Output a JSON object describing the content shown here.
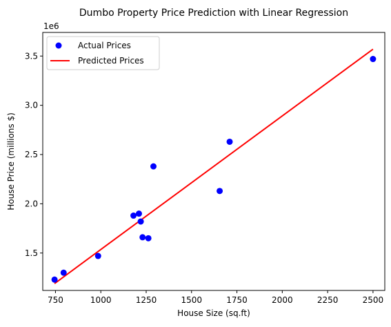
{
  "chart_data": {
    "type": "scatter",
    "title": "Dumbo Property Price Prediction with Linear Regression",
    "xlabel": "House Size (sq.ft)",
    "ylabel": "House Price (millions $)",
    "offset_text": "1e6",
    "xlim": [
      680,
      2565
    ],
    "ylim": [
      1.12,
      3.74
    ],
    "x_ticks": [
      750,
      1000,
      1250,
      1500,
      1750,
      2000,
      2250,
      2500
    ],
    "y_ticks": [
      1.5,
      2.0,
      2.5,
      3.0,
      3.5
    ],
    "x_tick_labels": [
      "750",
      "1000",
      "1250",
      "1500",
      "1750",
      "2000",
      "2250",
      "2500"
    ],
    "y_tick_labels": [
      "1.5",
      "2.0",
      "2.5",
      "3.0",
      "3.5"
    ],
    "grid": false,
    "legend_position": "top-left",
    "series": [
      {
        "name": "Actual Prices",
        "kind": "scatter",
        "color": "#0000ff",
        "points": [
          {
            "x": 745,
            "y": 1.23
          },
          {
            "x": 795,
            "y": 1.3
          },
          {
            "x": 985,
            "y": 1.47
          },
          {
            "x": 1180,
            "y": 1.88
          },
          {
            "x": 1210,
            "y": 1.9
          },
          {
            "x": 1220,
            "y": 1.82
          },
          {
            "x": 1230,
            "y": 1.66
          },
          {
            "x": 1262,
            "y": 1.65
          },
          {
            "x": 1290,
            "y": 2.38
          },
          {
            "x": 1655,
            "y": 2.13
          },
          {
            "x": 1710,
            "y": 2.63
          },
          {
            "x": 2500,
            "y": 3.47
          }
        ]
      },
      {
        "name": "Predicted Prices",
        "kind": "line",
        "color": "#ff0000",
        "points": [
          {
            "x": 745,
            "y": 1.19
          },
          {
            "x": 2500,
            "y": 3.57
          }
        ]
      }
    ]
  }
}
